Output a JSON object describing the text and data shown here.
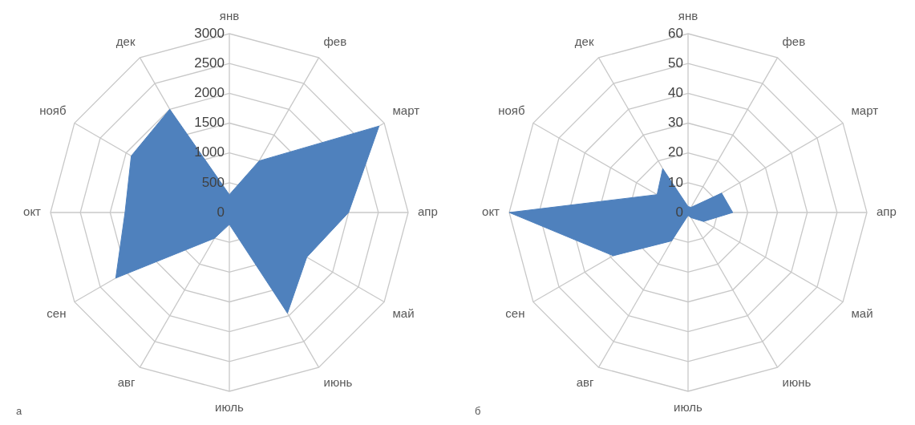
{
  "chart_data": [
    {
      "type": "radar",
      "categories": [
        "янв",
        "фев",
        "март",
        "апр",
        "май",
        "июнь",
        "июль",
        "авг",
        "сен",
        "окт",
        "нояб",
        "дек"
      ],
      "series": [
        {
          "color": "#4f81bd",
          "values": [
            300,
            1000,
            2900,
            2000,
            1500,
            1950,
            200,
            500,
            2200,
            1750,
            1900,
            2000
          ]
        }
      ],
      "ylim": [
        0,
        3000
      ],
      "yticks": [
        0,
        500,
        1000,
        1500,
        2000,
        2500,
        3000
      ],
      "grid": true,
      "annotations": [
        "а"
      ]
    },
    {
      "type": "radar",
      "categories": [
        "янв",
        "фев",
        "март",
        "апр",
        "май",
        "июнь",
        "июль",
        "авг",
        "сен",
        "окт",
        "нояб",
        "дек"
      ],
      "series": [
        {
          "color": "#4f81bd",
          "values": [
            2,
            2,
            13,
            15,
            6,
            2,
            1,
            11,
            29,
            60,
            12,
            17
          ]
        }
      ],
      "ylim": [
        0,
        60
      ],
      "yticks": [
        0,
        10,
        20,
        30,
        40,
        50,
        60
      ],
      "grid": true,
      "annotations": [
        "б"
      ]
    }
  ]
}
